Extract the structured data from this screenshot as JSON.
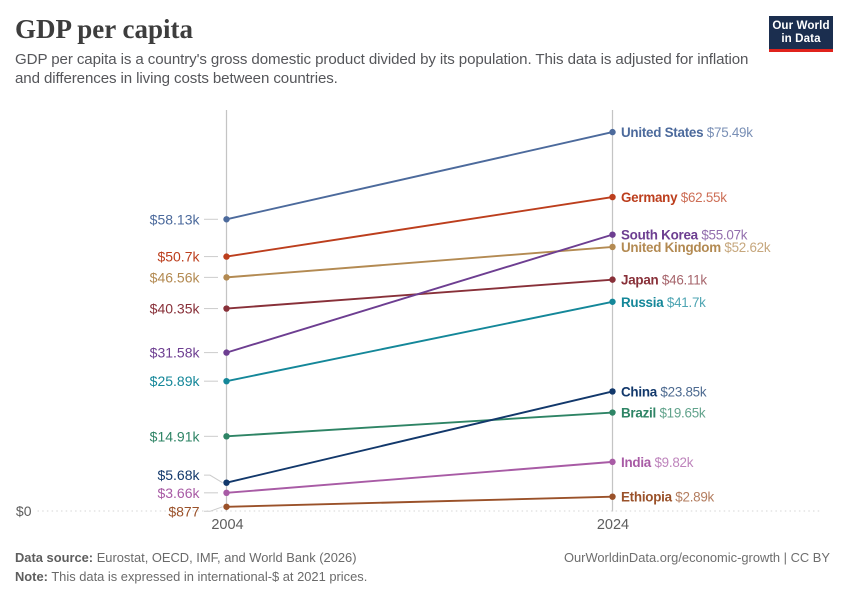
{
  "header": {
    "title": "GDP per capita",
    "subtitle": "GDP per capita is a country's gross domestic product divided by its population. This data is adjusted for inflation\nand differences in living costs between countries.",
    "logo": {
      "line1": "Our World",
      "line2": "in Data",
      "background_color": "#1b2e4f",
      "accent_color": "#e0231c"
    }
  },
  "chart_data": {
    "type": "line",
    "subtype": "slope",
    "x": [
      2004,
      2024
    ],
    "x_tick_labels": [
      "2004",
      "2024"
    ],
    "ylim": [
      0,
      80
    ],
    "y_unit": "international-$ (thousands)",
    "zero_label": "$0",
    "grid": "zero-line-only",
    "legend_position": "labels-on-lines",
    "series": [
      {
        "name": "United States",
        "values": [
          58.13,
          75.49
        ],
        "start_label": "$58.13k",
        "end_label": "$75.49k",
        "color": "#4C6A9C"
      },
      {
        "name": "Germany",
        "values": [
          50.7,
          62.55
        ],
        "start_label": "$50.7k",
        "end_label": "$62.55k",
        "color": "#BC3E1D"
      },
      {
        "name": "United Kingdom",
        "values": [
          46.56,
          52.62
        ],
        "start_label": "$46.56k",
        "end_label": "$52.62k",
        "color": "#B38A52"
      },
      {
        "name": "Japan",
        "values": [
          40.35,
          46.11
        ],
        "start_label": "$40.35k",
        "end_label": "$46.11k",
        "color": "#883039"
      },
      {
        "name": "South Korea",
        "values": [
          31.58,
          55.07
        ],
        "start_label": "$31.58k",
        "end_label": "$55.07k",
        "color": "#6D3E91"
      },
      {
        "name": "Russia",
        "values": [
          25.89,
          41.7
        ],
        "start_label": "$25.89k",
        "end_label": "$41.7k",
        "color": "#148799"
      },
      {
        "name": "Brazil",
        "values": [
          14.91,
          19.65
        ],
        "start_label": "$14.91k",
        "end_label": "$19.65k",
        "color": "#2E8465"
      },
      {
        "name": "China",
        "values": [
          5.68,
          23.85
        ],
        "start_label": "$5.68k",
        "end_label": "$23.85k",
        "color": "#12386B",
        "start_label_dy": -7.5
      },
      {
        "name": "India",
        "values": [
          3.66,
          9.82
        ],
        "start_label": "$3.66k",
        "end_label": "$9.82k",
        "color": "#A85BA5"
      },
      {
        "name": "Ethiopia",
        "values": [
          0.877,
          2.89
        ],
        "start_label": "$877",
        "end_label": "$2.89k",
        "color": "#9A5129",
        "start_label_dy": 4.5
      }
    ]
  },
  "footer": {
    "source_label": "Data source:",
    "source_text": "Eurostat, OECD, IMF, and World Bank (2026)",
    "note_label": "Note:",
    "note_text": "This data is expressed in international-$ at 2021 prices.",
    "link_text": "OurWorldinData.org/economic-growth | CC BY"
  }
}
